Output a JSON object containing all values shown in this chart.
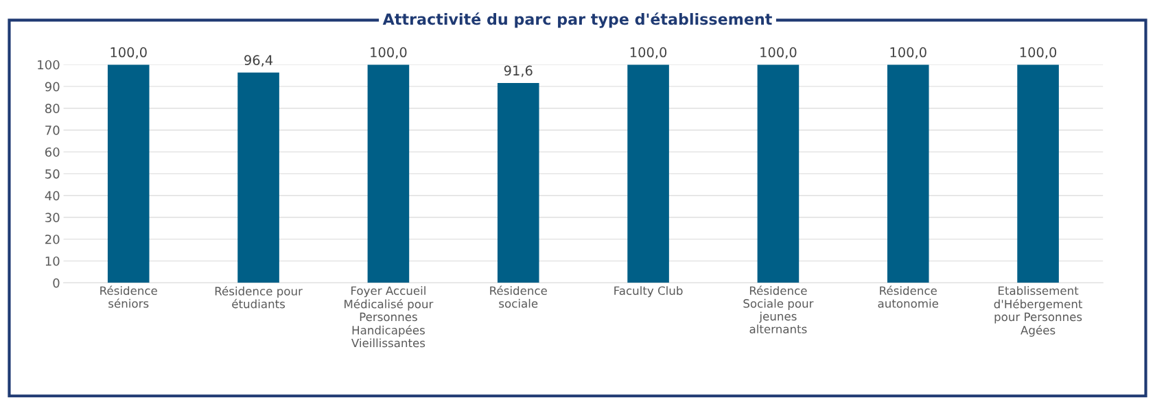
{
  "chart_data": {
    "type": "bar",
    "title": "Attractivité du parc par type d'établissement",
    "categories": [
      "Résidence\nséniors",
      "Résidence pour\nétudiants",
      "Foyer Accueil\nMédicalisé pour\nPersonnes\nHandicapées\nVieillissantes",
      "Résidence\nsociale",
      "Faculty Club",
      "Résidence\nSociale pour\njeunes\nalternants",
      "Résidence\nautonomie",
      "Etablissement\nd'Hébergement\npour Personnes\nAgées"
    ],
    "values": [
      100.0,
      96.4,
      100.0,
      91.6,
      100.0,
      100.0,
      100.0,
      100.0
    ],
    "value_labels": [
      "100,0",
      "96,4",
      "100,0",
      "91,6",
      "100,0",
      "100,0",
      "100,0",
      "100,0"
    ],
    "color": "#005f87",
    "ylim": [
      0,
      100
    ],
    "yticks": [
      0,
      10,
      20,
      30,
      40,
      50,
      60,
      70,
      80,
      90,
      100
    ],
    "grid": "y",
    "legend": false
  }
}
